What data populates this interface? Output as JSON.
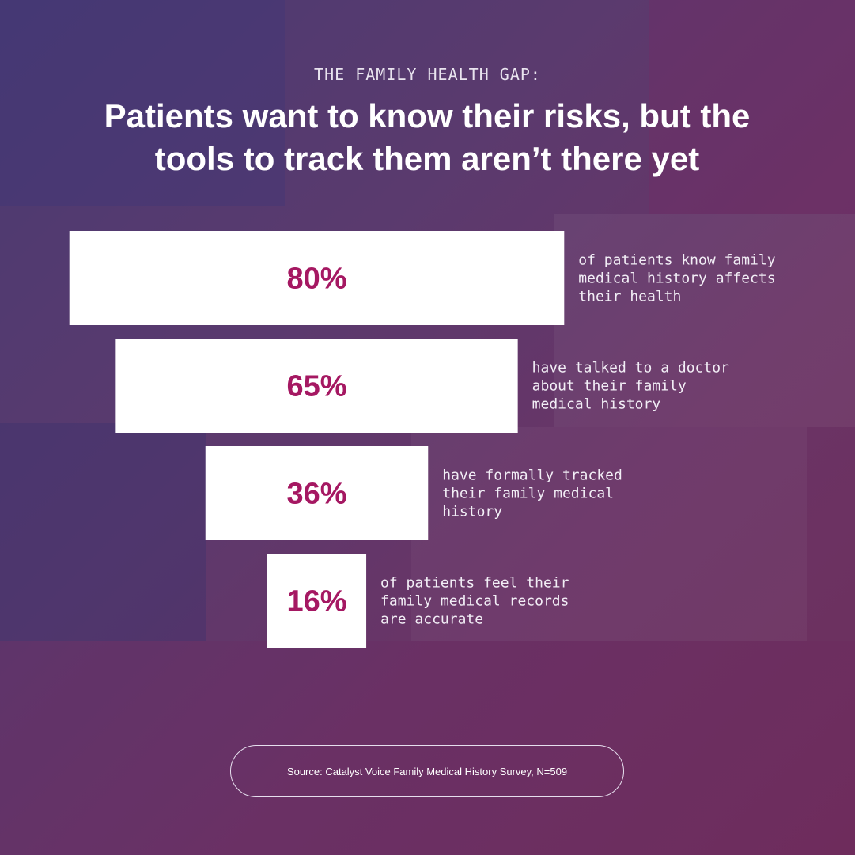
{
  "header": {
    "eyebrow": "THE FAMILY HEALTH GAP:",
    "headline": "Patients want to know their risks, but the tools to track them aren’t there yet"
  },
  "chart_data": {
    "type": "bar",
    "orientation": "horizontal-centered (funnel)",
    "unit": "%",
    "categories": [
      "of patients know family medical history affects their health",
      "have talked to a doctor about their family medical history",
      "have formally tracked their family medical history",
      "of patients feel their family medical records are accurate"
    ],
    "values": [
      80,
      65,
      36,
      16
    ],
    "value_labels": [
      "80%",
      "65%",
      "36%",
      "16%"
    ],
    "description_lines": [
      [
        "of patients know family",
        "medical history affects",
        "their health"
      ],
      [
        "have talked to a doctor",
        "about their family",
        "medical history"
      ],
      [
        "have formally tracked",
        "their family medical",
        "history"
      ],
      [
        "of patients feel their",
        "family medical records",
        "are accurate"
      ]
    ],
    "xlim": [
      0,
      100
    ],
    "grid": false,
    "legend": "none",
    "colors": {
      "bar": "#ffffff",
      "value_text": "#a51862",
      "description_text": "#f2eef6"
    }
  },
  "footer": {
    "source": "Source: Catalyst Voice Family Medical History Survey, N=509"
  }
}
